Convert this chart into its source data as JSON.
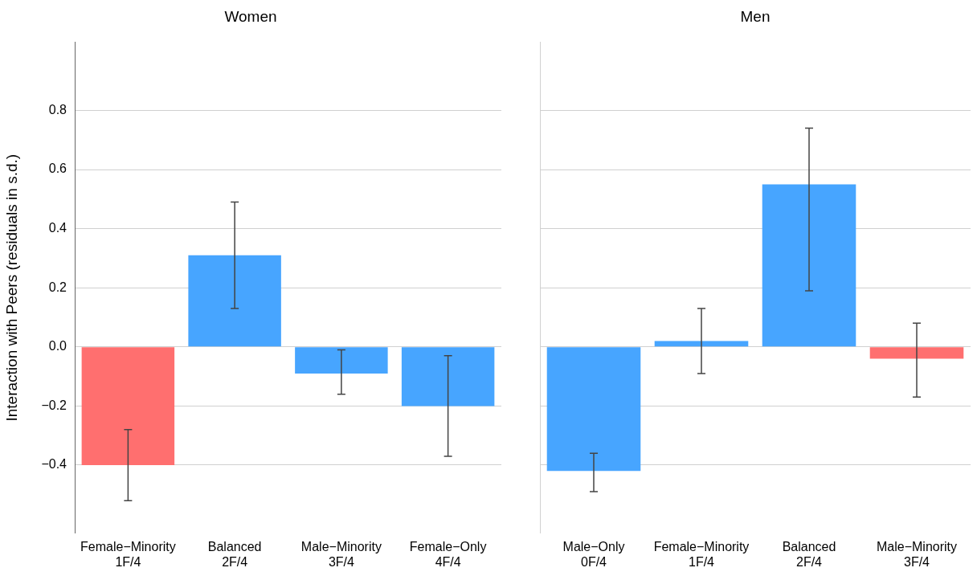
{
  "chart_data": [
    {
      "type": "bar",
      "title": "Women",
      "ylabel": "Interaction with Peers (residuals in s.d.)",
      "categories": [
        "Female−Minority\n1F/4",
        "Balanced\n2F/4",
        "Male−Minority\n3F/4",
        "Female−Only\n4F/4"
      ],
      "values": [
        -0.4,
        0.31,
        -0.09,
        -0.2
      ],
      "colors": [
        "#ff6f6f",
        "#47a5ff",
        "#47a5ff",
        "#47a5ff"
      ],
      "errors": [
        [
          -0.52,
          -0.28
        ],
        [
          0.13,
          0.49
        ],
        [
          -0.16,
          -0.01
        ],
        [
          -0.37,
          -0.03
        ]
      ],
      "ylim": [
        -0.63,
        1.03
      ],
      "yticks": [
        {
          "value": -0.4,
          "label": "−0.4"
        },
        {
          "value": -0.2,
          "label": "−0.2"
        },
        {
          "value": 0,
          "label": "0.0"
        },
        {
          "value": 0.2,
          "label": "0.2"
        },
        {
          "value": 0.4,
          "label": "0.4"
        },
        {
          "value": 0.6,
          "label": "0.6"
        },
        {
          "value": 0.8,
          "label": "0.8"
        }
      ],
      "grid": "y",
      "legend": false
    },
    {
      "type": "bar",
      "title": "Men",
      "categories": [
        "Male−Only\n0F/4",
        "Female−Minority\n1F/4",
        "Balanced\n2F/4",
        "Male−Minority\n3F/4"
      ],
      "values": [
        -0.42,
        0.02,
        0.55,
        -0.04
      ],
      "colors": [
        "#47a5ff",
        "#47a5ff",
        "#47a5ff",
        "#ff6f6f"
      ],
      "errors": [
        [
          -0.49,
          -0.36
        ],
        [
          -0.09,
          0.13
        ],
        [
          0.19,
          0.74
        ],
        [
          -0.17,
          0.08
        ]
      ],
      "ylim": [
        -0.63,
        1.03
      ],
      "yticks": [
        -0.4,
        -0.2,
        0,
        0.2,
        0.4,
        0.6,
        0.8
      ],
      "grid": "y",
      "legend": false,
      "tick_labels": "x"
    }
  ]
}
